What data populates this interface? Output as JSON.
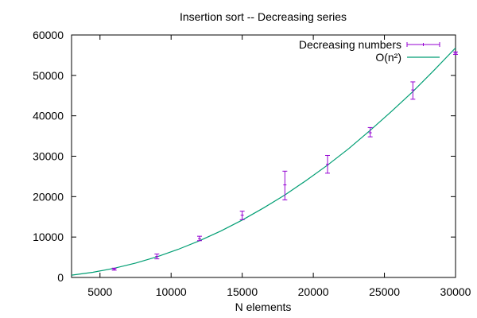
{
  "chart_data": {
    "type": "line",
    "title": "Insertion sort -- Decreasing series",
    "xlabel": "N elements",
    "ylabel": "",
    "xlim": [
      3000,
      30000
    ],
    "ylim": [
      0,
      60000
    ],
    "xticks": [
      5000,
      10000,
      15000,
      20000,
      25000,
      30000
    ],
    "yticks": [
      0,
      10000,
      20000,
      30000,
      40000,
      50000,
      60000
    ],
    "x_tick_labels": [
      "5000",
      "10000",
      "15000",
      "20000",
      "25000",
      "30000"
    ],
    "y_tick_labels": [
      "0",
      "10000",
      "20000",
      "30000",
      "40000",
      "50000",
      "60000"
    ],
    "grid": false,
    "legend_position": "top-right",
    "series": [
      {
        "name": "Decreasing numbers",
        "kind": "errorbars",
        "color": "#9400d3",
        "points": [
          {
            "x": 6000,
            "y": 2100,
            "low": 1800,
            "high": 2300
          },
          {
            "x": 9000,
            "y": 5200,
            "low": 4600,
            "high": 5800
          },
          {
            "x": 12000,
            "y": 9600,
            "low": 9100,
            "high": 10200
          },
          {
            "x": 15000,
            "y": 15400,
            "low": 14300,
            "high": 16400
          },
          {
            "x": 18000,
            "y": 22900,
            "low": 19200,
            "high": 26300
          },
          {
            "x": 21000,
            "y": 28000,
            "low": 25800,
            "high": 30200
          },
          {
            "x": 24000,
            "y": 35800,
            "low": 34800,
            "high": 37100
          },
          {
            "x": 27000,
            "y": 46400,
            "low": 44100,
            "high": 48400
          },
          {
            "x": 30000,
            "y": 55500,
            "low": 55200,
            "high": 55800
          }
        ]
      },
      {
        "name": "O(n²)",
        "kind": "line",
        "color": "#009e73",
        "x": [
          3000,
          4500,
          6000,
          7500,
          9000,
          10500,
          12000,
          13500,
          15000,
          16500,
          18000,
          19500,
          21000,
          22500,
          24000,
          25500,
          27000,
          28500,
          30000
        ],
        "y": [
          570,
          1280,
          2270,
          3550,
          5110,
          6960,
          9090,
          11500,
          14200,
          17200,
          20400,
          24000,
          27800,
          31900,
          36400,
          41100,
          46000,
          51300,
          56800
        ]
      }
    ]
  }
}
